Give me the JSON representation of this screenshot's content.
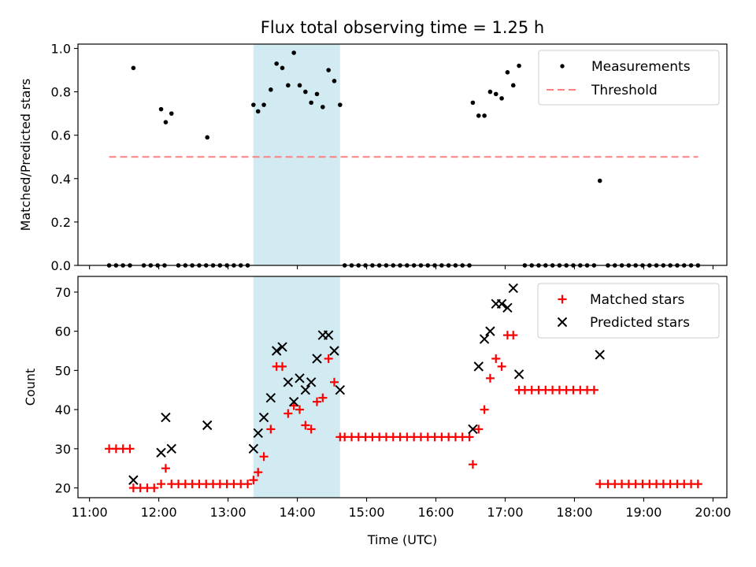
{
  "chart_data": [
    {
      "type": "scatter",
      "title": "Flux total observing time = 1.25 h",
      "ylabel": "Matched/Predicted stars",
      "xlim": [
        "10:50",
        "20:12"
      ],
      "ylim": [
        0.0,
        1.02
      ],
      "yticks": [
        "0.0",
        "0.2",
        "0.4",
        "0.6",
        "0.8",
        "1.0"
      ],
      "x_ticklabels_shown": false,
      "shaded_interval": {
        "start": "13:22",
        "end": "14:37",
        "color": "#add8e6"
      },
      "legend": {
        "placement": "top-right",
        "entries": [
          "Measurements",
          "Threshold"
        ]
      },
      "series": [
        {
          "name": "Measurements",
          "marker": "dot",
          "color": "#000000",
          "points": [
            [
              "11:17",
              0.0
            ],
            [
              "11:23",
              0.0
            ],
            [
              "11:29",
              0.0
            ],
            [
              "11:35",
              0.0
            ],
            [
              "11:38",
              0.91
            ],
            [
              "11:47",
              0.0
            ],
            [
              "11:53",
              0.0
            ],
            [
              "11:59",
              0.0
            ],
            [
              "12:02",
              0.72
            ],
            [
              "12:05",
              0.0
            ],
            [
              "12:06",
              0.66
            ],
            [
              "12:11",
              0.7
            ],
            [
              "12:17",
              0.0
            ],
            [
              "12:23",
              0.0
            ],
            [
              "12:29",
              0.0
            ],
            [
              "12:35",
              0.0
            ],
            [
              "12:41",
              0.0
            ],
            [
              "12:42",
              0.59
            ],
            [
              "12:47",
              0.0
            ],
            [
              "12:53",
              0.0
            ],
            [
              "12:59",
              0.0
            ],
            [
              "13:05",
              0.0
            ],
            [
              "13:11",
              0.0
            ],
            [
              "13:17",
              0.0
            ],
            [
              "13:22",
              0.74
            ],
            [
              "13:26",
              0.71
            ],
            [
              "13:31",
              0.74
            ],
            [
              "13:37",
              0.81
            ],
            [
              "13:42",
              0.93
            ],
            [
              "13:47",
              0.91
            ],
            [
              "13:52",
              0.83
            ],
            [
              "13:57",
              0.98
            ],
            [
              "14:02",
              0.83
            ],
            [
              "14:07",
              0.8
            ],
            [
              "14:12",
              0.75
            ],
            [
              "14:17",
              0.79
            ],
            [
              "14:22",
              0.73
            ],
            [
              "14:27",
              0.9
            ],
            [
              "14:32",
              0.85
            ],
            [
              "14:37",
              0.74
            ],
            [
              "14:41",
              0.0
            ],
            [
              "14:47",
              0.0
            ],
            [
              "14:53",
              0.0
            ],
            [
              "14:59",
              0.0
            ],
            [
              "15:05",
              0.0
            ],
            [
              "15:11",
              0.0
            ],
            [
              "15:17",
              0.0
            ],
            [
              "15:23",
              0.0
            ],
            [
              "15:29",
              0.0
            ],
            [
              "15:35",
              0.0
            ],
            [
              "15:41",
              0.0
            ],
            [
              "15:47",
              0.0
            ],
            [
              "15:53",
              0.0
            ],
            [
              "15:59",
              0.0
            ],
            [
              "16:05",
              0.0
            ],
            [
              "16:11",
              0.0
            ],
            [
              "16:17",
              0.0
            ],
            [
              "16:23",
              0.0
            ],
            [
              "16:29",
              0.0
            ],
            [
              "16:32",
              0.75
            ],
            [
              "16:37",
              0.69
            ],
            [
              "16:42",
              0.69
            ],
            [
              "16:47",
              0.8
            ],
            [
              "16:52",
              0.79
            ],
            [
              "16:57",
              0.77
            ],
            [
              "17:02",
              0.89
            ],
            [
              "17:07",
              0.83
            ],
            [
              "17:12",
              0.92
            ],
            [
              "17:17",
              0.0
            ],
            [
              "17:23",
              0.0
            ],
            [
              "17:29",
              0.0
            ],
            [
              "17:35",
              0.0
            ],
            [
              "17:41",
              0.0
            ],
            [
              "17:47",
              0.0
            ],
            [
              "17:53",
              0.0
            ],
            [
              "17:59",
              0.0
            ],
            [
              "18:05",
              0.0
            ],
            [
              "18:11",
              0.0
            ],
            [
              "18:17",
              0.0
            ],
            [
              "18:22",
              0.39
            ],
            [
              "18:29",
              0.0
            ],
            [
              "18:35",
              0.0
            ],
            [
              "18:41",
              0.0
            ],
            [
              "18:47",
              0.0
            ],
            [
              "18:53",
              0.0
            ],
            [
              "18:59",
              0.0
            ],
            [
              "19:05",
              0.0
            ],
            [
              "19:11",
              0.0
            ],
            [
              "19:17",
              0.0
            ],
            [
              "19:23",
              0.0
            ],
            [
              "19:29",
              0.0
            ],
            [
              "19:35",
              0.0
            ],
            [
              "19:41",
              0.0
            ],
            [
              "19:47",
              0.0
            ]
          ]
        },
        {
          "name": "Threshold",
          "style": "dashed-line",
          "color": "#ff7f7f",
          "points": [
            [
              "11:17",
              0.5
            ],
            [
              "19:47",
              0.5
            ]
          ]
        }
      ]
    },
    {
      "type": "scatter",
      "title": "",
      "xlabel": "Time (UTC)",
      "ylabel": "Count",
      "xlim": [
        "10:50",
        "20:12"
      ],
      "ylim": [
        17.5,
        74
      ],
      "xticks": [
        "11:00",
        "12:00",
        "13:00",
        "14:00",
        "15:00",
        "16:00",
        "17:00",
        "18:00",
        "19:00",
        "20:00"
      ],
      "yticks": [
        "20",
        "30",
        "40",
        "50",
        "60",
        "70"
      ],
      "shaded_interval": {
        "start": "13:22",
        "end": "14:37",
        "color": "#add8e6"
      },
      "legend": {
        "placement": "top-right",
        "entries": [
          "Matched stars",
          "Predicted stars"
        ]
      },
      "series": [
        {
          "name": "Matched stars",
          "marker": "plus",
          "color": "#ff0000",
          "points": [
            [
              "11:17",
              30
            ],
            [
              "11:23",
              30
            ],
            [
              "11:29",
              30
            ],
            [
              "11:35",
              30
            ],
            [
              "11:38",
              20
            ],
            [
              "11:44",
              20
            ],
            [
              "11:50",
              20
            ],
            [
              "11:56",
              20
            ],
            [
              "12:02",
              21
            ],
            [
              "12:06",
              25
            ],
            [
              "12:11",
              21
            ],
            [
              "12:17",
              21
            ],
            [
              "12:23",
              21
            ],
            [
              "12:29",
              21
            ],
            [
              "12:35",
              21
            ],
            [
              "12:41",
              21
            ],
            [
              "12:47",
              21
            ],
            [
              "12:53",
              21
            ],
            [
              "12:59",
              21
            ],
            [
              "13:05",
              21
            ],
            [
              "13:11",
              21
            ],
            [
              "13:17",
              21
            ],
            [
              "13:22",
              22
            ],
            [
              "13:26",
              24
            ],
            [
              "13:31",
              28
            ],
            [
              "13:37",
              35
            ],
            [
              "13:42",
              51
            ],
            [
              "13:47",
              51
            ],
            [
              "13:52",
              39
            ],
            [
              "13:57",
              41
            ],
            [
              "14:02",
              40
            ],
            [
              "14:07",
              36
            ],
            [
              "14:12",
              35
            ],
            [
              "14:17",
              42
            ],
            [
              "14:22",
              43
            ],
            [
              "14:27",
              53
            ],
            [
              "14:32",
              47
            ],
            [
              "14:37",
              33
            ],
            [
              "14:41",
              33
            ],
            [
              "14:47",
              33
            ],
            [
              "14:53",
              33
            ],
            [
              "14:59",
              33
            ],
            [
              "15:05",
              33
            ],
            [
              "15:11",
              33
            ],
            [
              "15:17",
              33
            ],
            [
              "15:23",
              33
            ],
            [
              "15:29",
              33
            ],
            [
              "15:35",
              33
            ],
            [
              "15:41",
              33
            ],
            [
              "15:47",
              33
            ],
            [
              "15:53",
              33
            ],
            [
              "15:59",
              33
            ],
            [
              "16:05",
              33
            ],
            [
              "16:11",
              33
            ],
            [
              "16:17",
              33
            ],
            [
              "16:23",
              33
            ],
            [
              "16:29",
              33
            ],
            [
              "16:32",
              26
            ],
            [
              "16:37",
              35
            ],
            [
              "16:42",
              40
            ],
            [
              "16:47",
              48
            ],
            [
              "16:52",
              53
            ],
            [
              "16:57",
              51
            ],
            [
              "17:02",
              59
            ],
            [
              "17:07",
              59
            ],
            [
              "17:12",
              45
            ],
            [
              "17:17",
              45
            ],
            [
              "17:23",
              45
            ],
            [
              "17:29",
              45
            ],
            [
              "17:35",
              45
            ],
            [
              "17:41",
              45
            ],
            [
              "17:47",
              45
            ],
            [
              "17:53",
              45
            ],
            [
              "17:59",
              45
            ],
            [
              "18:05",
              45
            ],
            [
              "18:11",
              45
            ],
            [
              "18:17",
              45
            ],
            [
              "18:22",
              21
            ],
            [
              "18:29",
              21
            ],
            [
              "18:35",
              21
            ],
            [
              "18:41",
              21
            ],
            [
              "18:47",
              21
            ],
            [
              "18:53",
              21
            ],
            [
              "18:59",
              21
            ],
            [
              "19:05",
              21
            ],
            [
              "19:11",
              21
            ],
            [
              "19:17",
              21
            ],
            [
              "19:23",
              21
            ],
            [
              "19:29",
              21
            ],
            [
              "19:35",
              21
            ],
            [
              "19:41",
              21
            ],
            [
              "19:47",
              21
            ]
          ]
        },
        {
          "name": "Predicted stars",
          "marker": "x",
          "color": "#000000",
          "points": [
            [
              "11:38",
              22
            ],
            [
              "12:02",
              29
            ],
            [
              "12:06",
              38
            ],
            [
              "12:11",
              30
            ],
            [
              "12:42",
              36
            ],
            [
              "13:22",
              30
            ],
            [
              "13:26",
              34
            ],
            [
              "13:31",
              38
            ],
            [
              "13:37",
              43
            ],
            [
              "13:42",
              55
            ],
            [
              "13:47",
              56
            ],
            [
              "13:52",
              47
            ],
            [
              "13:57",
              42
            ],
            [
              "14:02",
              48
            ],
            [
              "14:07",
              45
            ],
            [
              "14:12",
              47
            ],
            [
              "14:17",
              53
            ],
            [
              "14:22",
              59
            ],
            [
              "14:27",
              59
            ],
            [
              "14:32",
              55
            ],
            [
              "14:37",
              45
            ],
            [
              "16:32",
              35
            ],
            [
              "16:37",
              51
            ],
            [
              "16:42",
              58
            ],
            [
              "16:47",
              60
            ],
            [
              "16:52",
              67
            ],
            [
              "16:57",
              67
            ],
            [
              "17:02",
              66
            ],
            [
              "17:07",
              71
            ],
            [
              "17:12",
              49
            ],
            [
              "18:22",
              54
            ]
          ]
        }
      ]
    }
  ]
}
